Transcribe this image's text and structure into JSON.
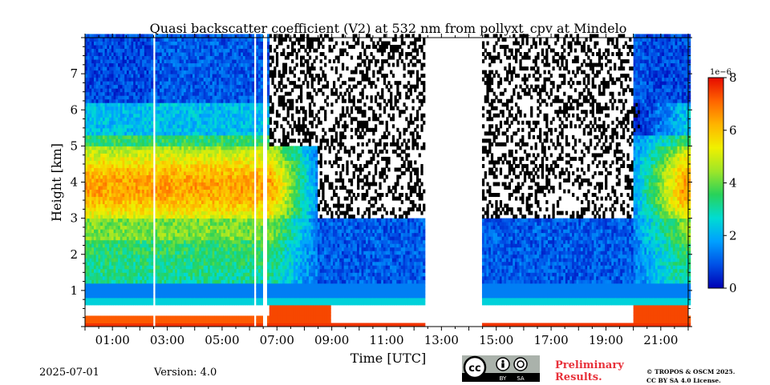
{
  "chart_data": {
    "type": "heatmap",
    "title": "Quasi backscatter coefficient (V2) at 532 nm from pollyxt_cpv at Mindelo",
    "xlabel": "Time [UTC]",
    "ylabel": "Height [km]",
    "x_range_hours": [
      0.0,
      22.0
    ],
    "ylim": [
      0,
      8
    ],
    "x_ticks": [
      "01:00",
      "03:00",
      "05:00",
      "07:00",
      "09:00",
      "11:00",
      "13:00",
      "15:00",
      "17:00",
      "19:00",
      "21:00"
    ],
    "x_tick_hours": [
      1,
      3,
      5,
      7,
      9,
      11,
      13,
      15,
      17,
      19,
      21
    ],
    "y_ticks": [
      1,
      2,
      3,
      4,
      5,
      6,
      7
    ],
    "colorbar": {
      "min": 0,
      "max": 8,
      "ticks": [
        0,
        2,
        4,
        6,
        8
      ],
      "scale_label": "1e−6",
      "colormap": [
        "#0000b4",
        "#0050e6",
        "#00a0ff",
        "#00dcd2",
        "#28d25a",
        "#9ee628",
        "#f0f000",
        "#ffb400",
        "#ff6400",
        "#e60a00"
      ]
    },
    "no_data_hours": [
      [
        2.45,
        2.6
      ],
      [
        6.2,
        6.25
      ],
      [
        6.5,
        6.65
      ],
      [
        12.4,
        14.45
      ]
    ],
    "layer_features": [
      {
        "name": "boundary layer",
        "height_km": [
          0.7,
          1.2
        ],
        "value": 1.5
      },
      {
        "name": "dust layer",
        "height_km": [
          2.5,
          5.2
        ],
        "value": 6.5,
        "hours": [
          0,
          7
        ]
      },
      {
        "name": "near-surface signal",
        "height_km": [
          0.0,
          0.6
        ],
        "value": 7.5
      }
    ]
  },
  "footer": {
    "date": "2025-07-01",
    "version": "Version: 4.0",
    "preliminary_line1": "Preliminary",
    "preliminary_line2": "Results.",
    "copyright_line1": "© TROPOS & OSCM 2025.",
    "copyright_line2": "CC BY SA 4.0 License.",
    "license_badge": {
      "cc": "cc",
      "by": "BY",
      "sa": "SA"
    }
  }
}
